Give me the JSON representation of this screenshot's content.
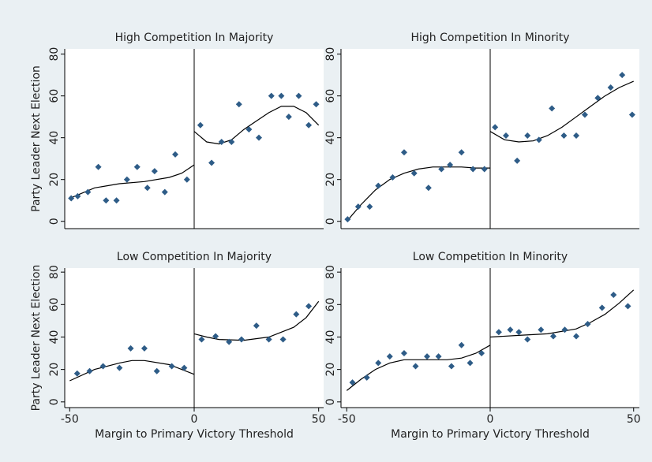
{
  "chart_data": [
    {
      "type": "scatter",
      "title": "High Competition In Majority",
      "ylabel": "Party Leader Next Election",
      "marker_color": "#2e5c87",
      "line_color": "#000000",
      "vline": 0,
      "xlim": [
        -52,
        52
      ],
      "ylim": [
        -3.5,
        82.5
      ],
      "yticks": [
        0,
        20,
        40,
        60,
        80
      ],
      "x": [
        -49.4,
        -46.8,
        -42.7,
        -38.5,
        -35.4,
        -31.2,
        -27,
        -22.9,
        -18.8,
        -15.9,
        -11.8,
        -7.6,
        -2.9,
        2.5,
        7,
        11,
        15,
        18,
        22,
        26,
        31,
        35,
        38,
        42,
        46,
        49
      ],
      "values": [
        11,
        12,
        14,
        26,
        10,
        10,
        20,
        26,
        16,
        24,
        14,
        32,
        20,
        46,
        28,
        38,
        38,
        56,
        44,
        40,
        60,
        60,
        50,
        60,
        46,
        56
      ],
      "fit": {
        "x": [
          -50,
          -40,
          -30,
          -20,
          -10,
          -5,
          0,
          null,
          0,
          5,
          10,
          15,
          20,
          25,
          30,
          35,
          40,
          45,
          50
        ],
        "values": [
          11,
          16,
          18,
          19,
          21,
          23,
          27,
          null,
          43,
          38,
          37,
          39,
          44,
          48,
          52,
          55,
          55,
          52,
          46
        ]
      }
    },
    {
      "type": "scatter",
      "title": "High Competition In Minority",
      "marker_color": "#2e5c87",
      "line_color": "#000000",
      "vline": 0,
      "xlim": [
        -52,
        52
      ],
      "ylim": [
        -3.5,
        82.5
      ],
      "yticks": [
        0,
        20,
        40,
        60,
        80
      ],
      "x": [
        -49.7,
        -46,
        -42,
        -39,
        -34,
        -30,
        -26.5,
        -21.5,
        -17,
        -14,
        -10,
        -6,
        -2,
        1.7,
        5.5,
        9.4,
        13,
        17,
        21.5,
        25.7,
        30,
        33,
        37.5,
        42,
        46,
        49.5
      ],
      "values": [
        1,
        7,
        7,
        17,
        21,
        33,
        23,
        16,
        25,
        27,
        33,
        25,
        25,
        45,
        41,
        29,
        41,
        39,
        54,
        41,
        41,
        51,
        59,
        64,
        70,
        51
      ],
      "fit": {
        "x": [
          -50,
          -45,
          -40,
          -35,
          -30,
          -25,
          -20,
          -15,
          -10,
          -5,
          0,
          null,
          0,
          5,
          10,
          15,
          20,
          25,
          30,
          35,
          40,
          45,
          50
        ],
        "values": [
          0,
          8,
          15,
          20,
          23,
          25,
          26,
          26,
          26,
          25.5,
          25.5,
          null,
          43,
          39,
          38,
          38.5,
          41,
          45,
          50,
          55,
          60,
          64,
          67
        ]
      }
    },
    {
      "type": "scatter",
      "title": "Low Competition In Majority",
      "ylabel": "Party Leader Next Election",
      "xlabel": "Margin to Primary Victory Threshold",
      "marker_color": "#2e5c87",
      "line_color": "#000000",
      "vline": 0,
      "xlim": [
        -52,
        52
      ],
      "ylim": [
        -3.5,
        82.5
      ],
      "yticks": [
        0,
        20,
        40,
        60,
        80
      ],
      "xticks": [
        -50,
        0,
        50
      ],
      "x": [
        -47,
        -42,
        -36.6,
        -30,
        -25.5,
        -20,
        -15,
        -9,
        -4,
        3,
        8.6,
        14,
        19,
        25,
        30,
        35.7,
        41,
        46
      ],
      "values": [
        17.5,
        19,
        22,
        21,
        33,
        33,
        19,
        22,
        21,
        38.5,
        40.5,
        37,
        38.5,
        47,
        38.5,
        38.5,
        54,
        59
      ],
      "fit": {
        "x": [
          -50,
          -40,
          -30,
          -25,
          -20,
          -10,
          0,
          null,
          0,
          5,
          10,
          20,
          30,
          40,
          45,
          50
        ],
        "values": [
          13,
          20,
          24,
          25.5,
          25.5,
          23,
          17,
          null,
          42,
          40,
          38.5,
          38,
          40,
          46,
          52,
          62
        ]
      }
    },
    {
      "type": "scatter",
      "title": "Low Competition In Minority",
      "xlabel": "Margin to Primary Victory Threshold",
      "marker_color": "#2e5c87",
      "line_color": "#000000",
      "vline": 0,
      "xlim": [
        -52,
        52
      ],
      "ylim": [
        -3.5,
        82.5
      ],
      "yticks": [
        0,
        20,
        40,
        60,
        80
      ],
      "xticks": [
        -50,
        0,
        50
      ],
      "x": [
        -48,
        -43,
        -39,
        -35,
        -30,
        -26,
        -22,
        -18,
        -13.5,
        -10,
        -7,
        -3,
        3,
        7,
        10,
        13,
        17.7,
        22,
        26,
        30,
        34,
        39,
        43,
        48
      ],
      "values": [
        12,
        15,
        24,
        28,
        30,
        22,
        28,
        28,
        22,
        35,
        24,
        30,
        43,
        44.5,
        43,
        38.5,
        44.5,
        40.5,
        44.5,
        40.5,
        48,
        58,
        66,
        59
      ],
      "fit": {
        "x": [
          -50,
          -45,
          -40,
          -35,
          -30,
          -25,
          -20,
          -15,
          -10,
          -5,
          0,
          null,
          0,
          10,
          20,
          30,
          35,
          40,
          45,
          50
        ],
        "values": [
          7,
          14,
          20,
          24,
          26,
          26,
          26,
          26,
          27,
          30,
          35,
          null,
          40,
          41,
          42,
          45,
          49,
          54,
          61,
          69
        ]
      }
    }
  ]
}
